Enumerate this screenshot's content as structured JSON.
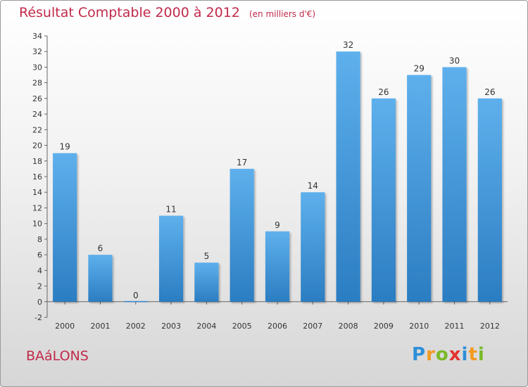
{
  "title": "Résultat Comptable 2000 à 2012",
  "units": "(en milliers d'€)",
  "commune": "BAáLONS",
  "brand": {
    "letters": [
      "P",
      "r",
      "o",
      "x",
      "i",
      "t",
      "i"
    ],
    "colors": [
      "#2e8fd8",
      "#f29a1f",
      "#7ab929",
      "#e3342f",
      "#2e8fd8",
      "#f29a1f",
      "#7ab929"
    ]
  },
  "chart_data": {
    "type": "bar",
    "title": "Résultat Comptable 2000 à 2012",
    "subtitle": "(en milliers d'€)",
    "xlabel": "",
    "ylabel": "",
    "categories": [
      "2000",
      "2001",
      "2002",
      "2003",
      "2004",
      "2005",
      "2006",
      "2007",
      "2008",
      "2009",
      "2010",
      "2011",
      "2012"
    ],
    "values": [
      19,
      6,
      0,
      11,
      5,
      17,
      9,
      14,
      32,
      26,
      29,
      30,
      26
    ],
    "ylim": [
      -2,
      34
    ],
    "yticks": [
      -2,
      0,
      2,
      4,
      6,
      8,
      10,
      12,
      14,
      16,
      18,
      20,
      22,
      24,
      26,
      28,
      30,
      32,
      34
    ],
    "grid": false,
    "bar_color": "#4a9ee0"
  }
}
